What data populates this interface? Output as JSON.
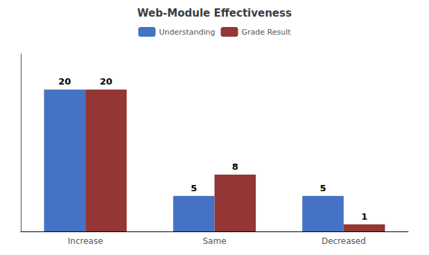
{
  "chart_data": {
    "type": "bar",
    "title": "Web-Module Effectiveness",
    "categories": [
      "Increase",
      "Same",
      "Decreased"
    ],
    "series": [
      {
        "name": "Understanding",
        "color": "#4472C4",
        "values": [
          20,
          5,
          5
        ]
      },
      {
        "name": "Grade Result",
        "color": "#943634",
        "values": [
          20,
          8,
          1
        ]
      }
    ],
    "ylim": [
      0,
      25
    ],
    "grid": false,
    "legend": "top",
    "data_labels": true,
    "tick_labels": "x"
  }
}
